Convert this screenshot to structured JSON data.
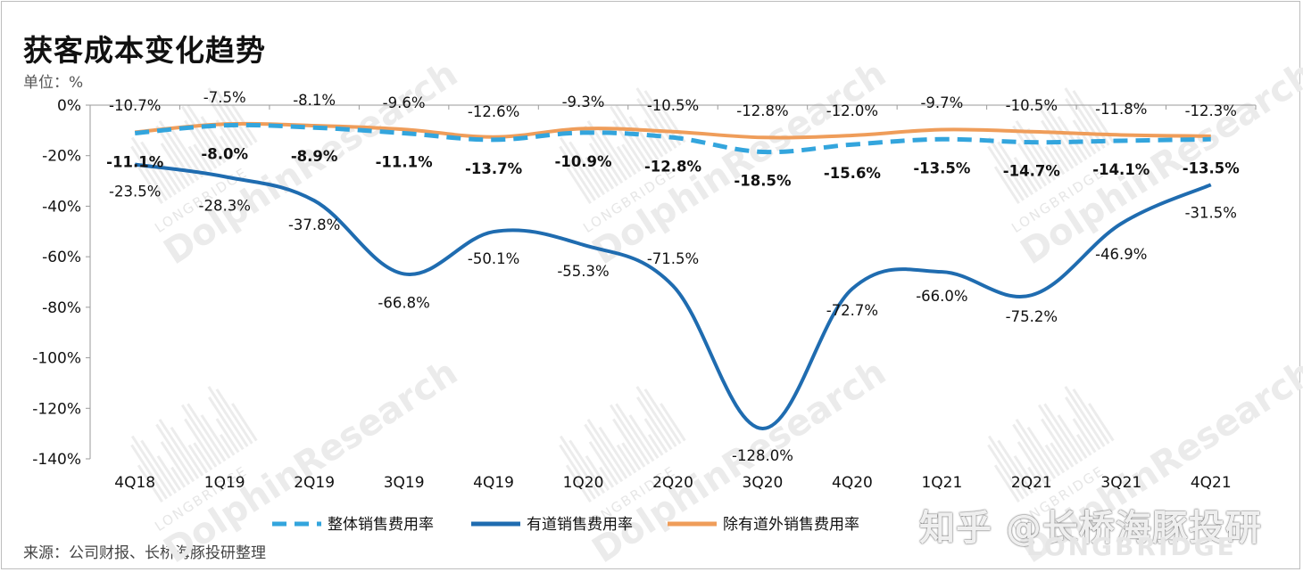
{
  "title": "获客成本变化趋势",
  "unit": "单位：%",
  "source": "来源：公司财报、长桥海豚投研整理",
  "watermarks": {
    "zhihu": "知乎 @长桥海豚投研",
    "brand": "LONGBRIDGE",
    "diagonal": "DolphinResearch",
    "diagonal_small": "LONGBRIDGE"
  },
  "chart_data": {
    "type": "line",
    "title": "获客成本变化趋势",
    "ylabel": "单位：%",
    "categories": [
      "4Q18",
      "1Q19",
      "2Q19",
      "3Q19",
      "4Q19",
      "1Q20",
      "2Q20",
      "3Q20",
      "4Q20",
      "1Q21",
      "2Q21",
      "3Q21",
      "4Q21"
    ],
    "ylim": [
      -140,
      0
    ],
    "yticks": [
      0,
      -20,
      -40,
      -60,
      -80,
      -100,
      -120,
      -140
    ],
    "ytick_labels": [
      "0%",
      "-20%",
      "-40%",
      "-60%",
      "-80%",
      "-100%",
      "-120%",
      "-140%"
    ],
    "grid": false,
    "legend_position": "bottom",
    "series": [
      {
        "name": "整体销售费用率",
        "color": "#33a5dd",
        "style": "dashed",
        "values": [
          -11.1,
          -8.0,
          -8.9,
          -11.1,
          -13.7,
          -10.9,
          -12.8,
          -18.5,
          -15.6,
          -13.5,
          -14.7,
          -14.1,
          -13.5
        ],
        "labels": [
          "-11.1%",
          "-8.0%",
          "-8.9%",
          "-11.1%",
          "-13.7%",
          "-10.9%",
          "-12.8%",
          "-18.5%",
          "-15.6%",
          "-13.5%",
          "-14.7%",
          "-14.1%",
          "-13.5%"
        ]
      },
      {
        "name": "有道销售费用率",
        "color": "#1f6cb0",
        "style": "solid",
        "values": [
          -23.5,
          -28.3,
          -37.8,
          -66.8,
          -50.1,
          -55.3,
          -71.5,
          -128.0,
          -72.7,
          -66.0,
          -75.2,
          -46.9,
          -31.5
        ],
        "labels": [
          "-23.5%",
          "-28.3%",
          "-37.8%",
          "-66.8%",
          "-50.1%",
          "-55.3%",
          "-71.5%",
          "-128.0%",
          "-72.7%",
          "-66.0%",
          "-75.2%",
          "-46.9%",
          "-31.5%"
        ]
      },
      {
        "name": "除有道外销售费用率",
        "color": "#ef9d5a",
        "style": "solid",
        "values": [
          -10.7,
          -7.5,
          -8.1,
          -9.6,
          -12.6,
          -9.3,
          -10.5,
          -12.8,
          -12.0,
          -9.7,
          -10.5,
          -11.8,
          -12.3
        ],
        "labels": [
          "-10.7%",
          "-7.5%",
          "-8.1%",
          "-9.6%",
          "-12.6%",
          "-9.3%",
          "-10.5%",
          "-12.8%",
          "-12.0%",
          "-9.7%",
          "-10.5%",
          "-11.8%",
          "-12.3%"
        ]
      }
    ]
  }
}
